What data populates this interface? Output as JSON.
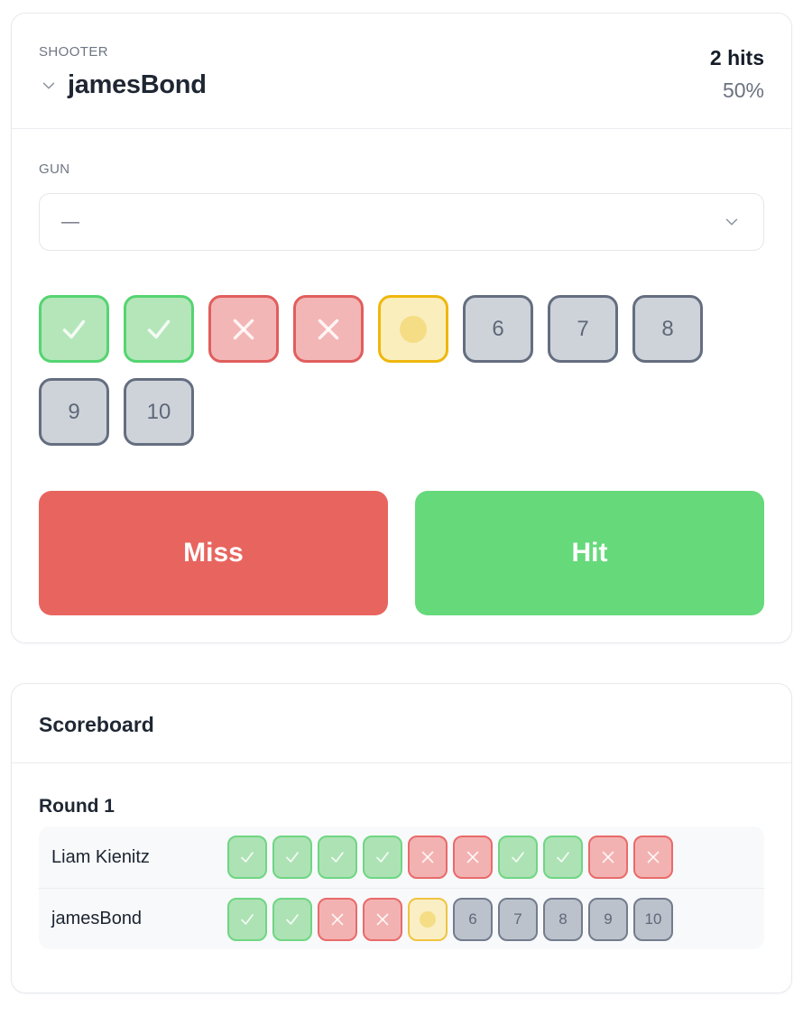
{
  "colors": {
    "hit_green": "#66d97b",
    "miss_red": "#e8655f",
    "current_yellow": "#eeb70c",
    "pending_gray": "#656e80",
    "text_dark": "#1f2633",
    "text_muted": "#6b7280"
  },
  "icons": {
    "shooter_expand": "chevron-down",
    "gun_select_arrow": "chevron-down",
    "hit_glyph": "check",
    "miss_glyph": "x",
    "current_glyph": "dot"
  },
  "shooter_panel": {
    "label": "SHOOTER",
    "name": "jamesBond",
    "hits": "2 hits",
    "percent": "50%",
    "gun_label": "GUN",
    "gun_value": "—",
    "shots": [
      {
        "state": "hit"
      },
      {
        "state": "hit"
      },
      {
        "state": "miss"
      },
      {
        "state": "miss"
      },
      {
        "state": "current"
      },
      {
        "state": "pending",
        "label": "6"
      },
      {
        "state": "pending",
        "label": "7"
      },
      {
        "state": "pending",
        "label": "8"
      },
      {
        "state": "pending",
        "label": "9"
      },
      {
        "state": "pending",
        "label": "10"
      }
    ],
    "miss_button": "Miss",
    "hit_button": "Hit"
  },
  "scoreboard": {
    "title": "Scoreboard",
    "round_label": "Round 1",
    "rows": [
      {
        "name": "Liam Kienitz",
        "shots": [
          {
            "state": "hit"
          },
          {
            "state": "hit"
          },
          {
            "state": "hit"
          },
          {
            "state": "hit"
          },
          {
            "state": "miss"
          },
          {
            "state": "miss"
          },
          {
            "state": "hit"
          },
          {
            "state": "hit"
          },
          {
            "state": "miss"
          },
          {
            "state": "miss"
          }
        ]
      },
      {
        "name": "jamesBond",
        "shots": [
          {
            "state": "hit"
          },
          {
            "state": "hit"
          },
          {
            "state": "miss"
          },
          {
            "state": "miss"
          },
          {
            "state": "current"
          },
          {
            "state": "pending",
            "label": "6"
          },
          {
            "state": "pending",
            "label": "7"
          },
          {
            "state": "pending",
            "label": "8"
          },
          {
            "state": "pending",
            "label": "9"
          },
          {
            "state": "pending",
            "label": "10"
          }
        ]
      }
    ]
  }
}
